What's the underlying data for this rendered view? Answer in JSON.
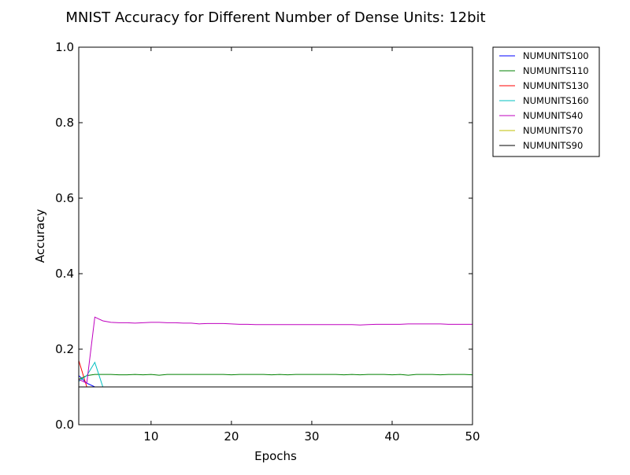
{
  "chart_data": {
    "type": "line",
    "title": "MNIST Accuracy for Different Number of Dense Units: 12bit",
    "xlabel": "Epochs",
    "ylabel": "Accuracy",
    "xlim": [
      1,
      50
    ],
    "ylim": [
      0.0,
      1.0
    ],
    "xticks": [
      10,
      20,
      30,
      40,
      50
    ],
    "xtick_labels": [
      "10",
      "20",
      "30",
      "40",
      "50"
    ],
    "yticks": [
      0.0,
      0.2,
      0.4,
      0.6,
      0.8,
      1.0
    ],
    "ytick_labels": [
      "0.0",
      "0.2",
      "0.4",
      "0.6",
      "0.8",
      "1.0"
    ],
    "grid": false,
    "legend_position": "outside top-right",
    "x": [
      1,
      2,
      3,
      4,
      5,
      6,
      7,
      8,
      9,
      10,
      11,
      12,
      13,
      14,
      15,
      16,
      17,
      18,
      19,
      20,
      21,
      22,
      23,
      24,
      25,
      26,
      27,
      28,
      29,
      30,
      31,
      32,
      33,
      34,
      35,
      36,
      37,
      38,
      39,
      40,
      41,
      42,
      43,
      44,
      45,
      46,
      47,
      48,
      49,
      50
    ],
    "series": [
      {
        "name": "NUMUNITS100",
        "color": "#0000ff",
        "values": [
          0.13,
          0.11,
          0.1,
          0.1,
          0.1,
          0.1,
          0.1,
          0.1,
          0.1,
          0.1,
          0.1,
          0.1,
          0.1,
          0.1,
          0.1,
          0.1,
          0.1,
          0.1,
          0.1,
          0.1,
          0.1,
          0.1,
          0.1,
          0.1,
          0.1,
          0.1,
          0.1,
          0.1,
          0.1,
          0.1,
          0.1,
          0.1,
          0.1,
          0.1,
          0.1,
          0.1,
          0.1,
          0.1,
          0.1,
          0.1,
          0.1,
          0.1,
          0.1,
          0.1,
          0.1,
          0.1,
          0.1,
          0.1,
          0.1,
          0.1
        ]
      },
      {
        "name": "NUMUNITS110",
        "color": "#008000",
        "values": [
          0.12,
          0.13,
          0.133,
          0.133,
          0.133,
          0.132,
          0.132,
          0.133,
          0.132,
          0.133,
          0.131,
          0.133,
          0.133,
          0.133,
          0.133,
          0.133,
          0.133,
          0.133,
          0.133,
          0.132,
          0.133,
          0.133,
          0.133,
          0.133,
          0.132,
          0.133,
          0.132,
          0.133,
          0.133,
          0.133,
          0.133,
          0.133,
          0.133,
          0.132,
          0.133,
          0.132,
          0.133,
          0.133,
          0.133,
          0.132,
          0.133,
          0.131,
          0.133,
          0.133,
          0.133,
          0.132,
          0.133,
          0.133,
          0.133,
          0.132
        ]
      },
      {
        "name": "NUMUNITS130",
        "color": "#ff0000",
        "values": [
          0.17,
          0.1,
          0.1,
          0.1,
          0.1,
          0.1,
          0.1,
          0.1,
          0.1,
          0.1,
          0.1,
          0.1,
          0.1,
          0.1,
          0.1,
          0.1,
          0.1,
          0.1,
          0.1,
          0.1,
          0.1,
          0.1,
          0.1,
          0.1,
          0.1,
          0.1,
          0.1,
          0.1,
          0.1,
          0.1,
          0.1,
          0.1,
          0.1,
          0.1,
          0.1,
          0.1,
          0.1,
          0.1,
          0.1,
          0.1,
          0.1,
          0.1,
          0.1,
          0.1,
          0.1,
          0.1,
          0.1,
          0.1,
          0.1,
          0.1
        ]
      },
      {
        "name": "NUMUNITS160",
        "color": "#00bfbf",
        "values": [
          0.115,
          0.13,
          0.165,
          0.1,
          0.1,
          0.1,
          0.1,
          0.1,
          0.1,
          0.1,
          0.1,
          0.1,
          0.1,
          0.1,
          0.1,
          0.1,
          0.1,
          0.1,
          0.1,
          0.1,
          0.1,
          0.1,
          0.1,
          0.1,
          0.1,
          0.1,
          0.1,
          0.1,
          0.1,
          0.1,
          0.1,
          0.1,
          0.1,
          0.1,
          0.1,
          0.1,
          0.1,
          0.1,
          0.1,
          0.1,
          0.1,
          0.1,
          0.1,
          0.1,
          0.1,
          0.1,
          0.1,
          0.1,
          0.1,
          0.1
        ]
      },
      {
        "name": "NUMUNITS40",
        "color": "#bf00bf",
        "values": [
          0.12,
          0.11,
          0.285,
          0.275,
          0.271,
          0.27,
          0.27,
          0.269,
          0.27,
          0.271,
          0.271,
          0.27,
          0.27,
          0.269,
          0.269,
          0.267,
          0.268,
          0.268,
          0.268,
          0.267,
          0.266,
          0.266,
          0.265,
          0.265,
          0.265,
          0.265,
          0.265,
          0.265,
          0.265,
          0.265,
          0.265,
          0.265,
          0.265,
          0.265,
          0.265,
          0.264,
          0.265,
          0.266,
          0.266,
          0.266,
          0.266,
          0.267,
          0.267,
          0.267,
          0.267,
          0.267,
          0.266,
          0.266,
          0.266,
          0.266
        ]
      },
      {
        "name": "NUMUNITS70",
        "color": "#bfbf00",
        "values": [
          0.1,
          0.1,
          0.1,
          0.1,
          0.1,
          0.1,
          0.1,
          0.1,
          0.1,
          0.1,
          0.1,
          0.1,
          0.1,
          0.1,
          0.1,
          0.1,
          0.1,
          0.1,
          0.1,
          0.1,
          0.1,
          0.1,
          0.1,
          0.1,
          0.1,
          0.1,
          0.1,
          0.1,
          0.1,
          0.1,
          0.1,
          0.1,
          0.1,
          0.1,
          0.1,
          0.1,
          0.1,
          0.1,
          0.1,
          0.1,
          0.1,
          0.1,
          0.1,
          0.1,
          0.1,
          0.1,
          0.1,
          0.1,
          0.1,
          0.1
        ]
      },
      {
        "name": "NUMUNITS90",
        "color": "#000000",
        "values": [
          0.1,
          0.1,
          0.1,
          0.1,
          0.1,
          0.1,
          0.1,
          0.1,
          0.1,
          0.1,
          0.1,
          0.1,
          0.1,
          0.1,
          0.1,
          0.1,
          0.1,
          0.1,
          0.1,
          0.1,
          0.1,
          0.1,
          0.1,
          0.1,
          0.1,
          0.1,
          0.1,
          0.1,
          0.1,
          0.1,
          0.1,
          0.1,
          0.1,
          0.1,
          0.1,
          0.1,
          0.1,
          0.1,
          0.1,
          0.1,
          0.1,
          0.1,
          0.1,
          0.1,
          0.1,
          0.1,
          0.1,
          0.1,
          0.1,
          0.1
        ]
      }
    ]
  }
}
